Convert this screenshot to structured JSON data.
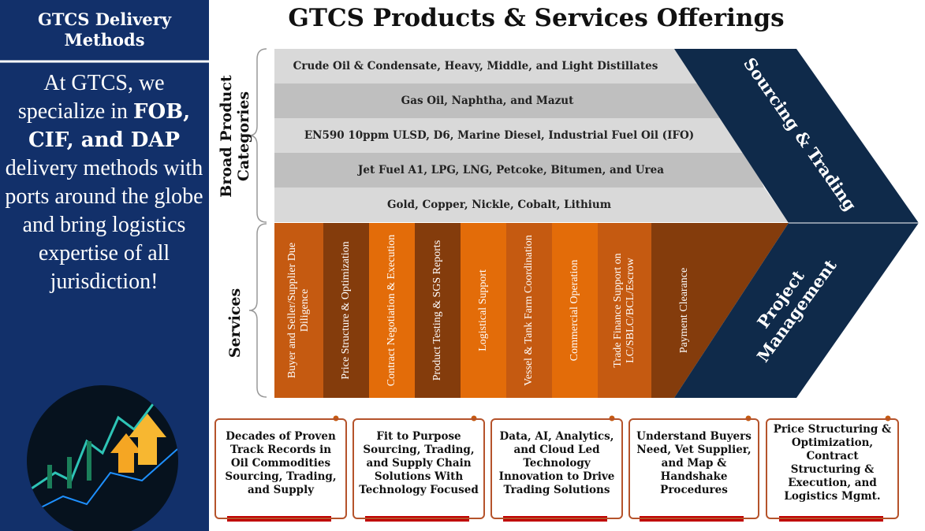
{
  "sidebar": {
    "title": "GTCS Delivery Methods",
    "intro": "At GTCS, we specialize in",
    "bold": "FOB, CIF, and DAP",
    "rest": "delivery methods with ports around the globe and bring logistics expertise of all jurisdiction!"
  },
  "header": {
    "title": "GTCS Products & Services Offerings"
  },
  "sections": {
    "products_label": "Broad Product Categories",
    "services_label": "Services"
  },
  "products": [
    "Crude Oil & Condensate, Heavy, Middle, and Light Distillates",
    "Gas Oil, Naphtha, and Mazut",
    "EN590 10ppm ULSD, D6, Marine Diesel, Industrial Fuel Oil (IFO)",
    "Jet Fuel A1, LPG, LNG, Petcoke, Bitumen, and Urea",
    "Gold, Copper, Nickle, Cobalt, Lithium"
  ],
  "services": [
    "Buyer and Seller/Supplier Due Diligence",
    "Price Structure & Optimization",
    "Contract Negotiation & Execution",
    "Product Testing & SGS Reports",
    "Logistical Support",
    "Vessel & Tank Farm Coordination",
    "Commercial Operation",
    "Trade Finance Support on LC/SBLC/BCL/Escrow",
    "Payment Clearance"
  ],
  "chevron": {
    "top": "Sourcing & Trading",
    "bottom": "Project Management"
  },
  "cards": [
    "Decades of Proven Track Records in Oil Commodities Sourcing, Trading, and Supply",
    "Fit to Purpose Sourcing, Trading, and Supply Chain Solutions With Technology Focused",
    "Data, AI, Analytics, and Cloud Led Technology Innovation to Drive Trading Solutions",
    "Understand Buyers Need, Vet Supplier, and Map & Handshake Procedures",
    "Price Structuring & Optimization, Contract Structuring & Execution, and Logistics Mgmt."
  ]
}
